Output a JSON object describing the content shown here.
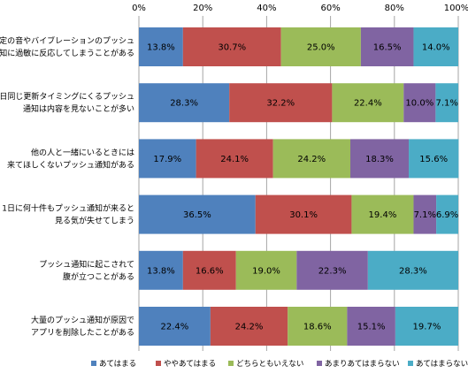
{
  "chart_data": {
    "type": "bar",
    "orientation": "horizontal",
    "stacked": true,
    "title": "",
    "xlabel": "",
    "ylabel": "",
    "xlim": [
      0,
      100
    ],
    "x_ticks": [
      "0%",
      "20%",
      "40%",
      "60%",
      "80%",
      "100%"
    ],
    "grid": true,
    "legend_position": "bottom",
    "categories": [
      [
        "特定の音やバイブレーションのプッシュ",
        "通知に過敏に反応してしまうことがある"
      ],
      [
        "毎日同じ更新タイミングにくるプッシュ",
        "通知は内容を見ないことが多い"
      ],
      [
        "他の人と一緒にいるときには",
        "来てほしくないプッシュ通知がある"
      ],
      [
        "1日に何十件もプッシュ通知が来ると",
        "見る気が失せてしまう"
      ],
      [
        "プッシュ通知に起こされて",
        "腹が立つことがある"
      ],
      [
        "大量のプッシュ通知が原因で",
        "アプリを削除したことがある"
      ]
    ],
    "series": [
      {
        "name": "あてはまる",
        "color": "#4f81bd",
        "values": [
          13.8,
          28.3,
          17.9,
          36.5,
          13.8,
          22.4
        ]
      },
      {
        "name": "ややあてはまる",
        "color": "#c0504d",
        "values": [
          30.7,
          32.2,
          24.1,
          30.1,
          16.6,
          24.2
        ]
      },
      {
        "name": "どちらともいえない",
        "color": "#9bbb59",
        "values": [
          25.0,
          22.4,
          24.2,
          19.4,
          19.0,
          18.6
        ]
      },
      {
        "name": "あまりあてはまらない",
        "color": "#8064a2",
        "values": [
          16.5,
          10.0,
          18.3,
          7.1,
          22.3,
          15.1
        ]
      },
      {
        "name": "あてはまらない",
        "color": "#4bacc6",
        "values": [
          14.0,
          7.1,
          15.6,
          6.9,
          28.3,
          19.7
        ]
      }
    ]
  }
}
